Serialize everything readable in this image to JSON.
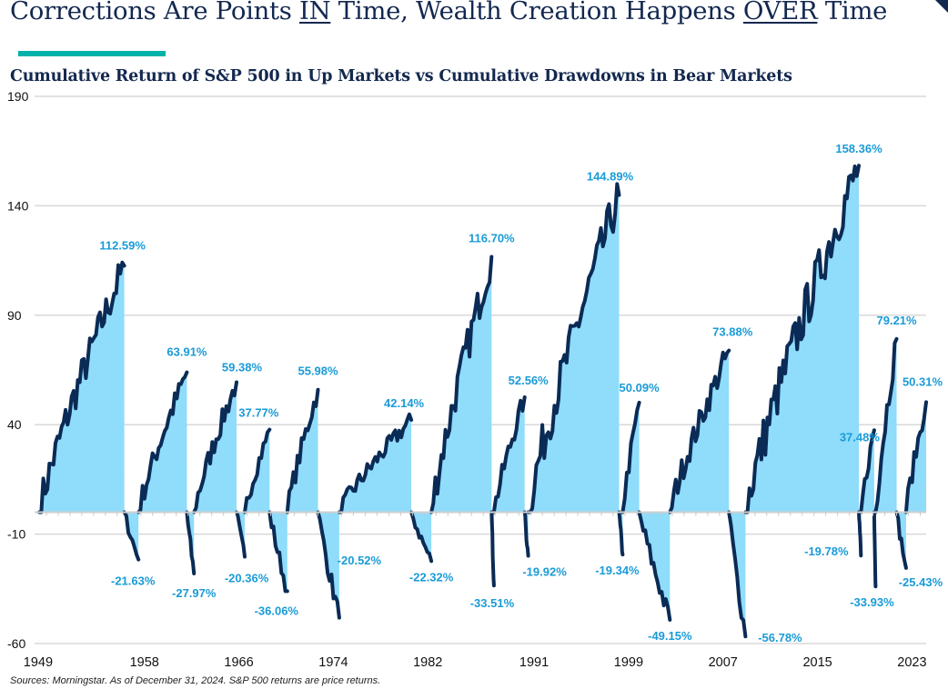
{
  "header": {
    "title_parts": [
      {
        "text": "Corrections Are Points ",
        "underline": false
      },
      {
        "text": "IN",
        "underline": true
      },
      {
        "text": " Time, Wealth Creation Happens ",
        "underline": false
      },
      {
        "text": "OVER",
        "underline": true
      },
      {
        "text": " Time",
        "underline": false
      }
    ],
    "accent_color": "#00b2a9",
    "title_color": "#13284f"
  },
  "footer": {
    "source_note": "Sources: Morningstar. As of December 31, 2024. S&P 500 returns are price returns."
  },
  "chart_data": {
    "type": "area",
    "title": "Cumulative Return of S&P 500 in Up Markets vs Cumulative Drawdowns in Bear Markets",
    "xlabel": "",
    "ylabel": "",
    "ylim": [
      -60,
      190
    ],
    "xlim": [
      1949,
      2024.5
    ],
    "yticks": [
      190,
      140,
      90,
      40,
      -10,
      -60
    ],
    "xticks": [
      "1949",
      "1958",
      "1966",
      "1974",
      "1982",
      "1991",
      "1999",
      "2007",
      "2015",
      "2023"
    ],
    "grid": true,
    "legend": "none",
    "colors": {
      "line": "#0a2b55",
      "fill": "#8fdcfb",
      "label": "#1a9bd7",
      "grid": "#d9d9d9"
    },
    "series": [
      {
        "name": "Up market",
        "start": 1949.4,
        "end": 1956.6,
        "value": 112.59,
        "label": "112.59%"
      },
      {
        "name": "Bear market",
        "start": 1956.6,
        "end": 1957.8,
        "value": -21.63,
        "label": "-21.63%"
      },
      {
        "name": "Up market",
        "start": 1957.8,
        "end": 1961.9,
        "value": 63.91,
        "label": "63.91%"
      },
      {
        "name": "Bear market",
        "start": 1961.9,
        "end": 1962.5,
        "value": -27.97,
        "label": "-27.97%"
      },
      {
        "name": "Up market",
        "start": 1962.5,
        "end": 1966.1,
        "value": 59.38,
        "label": "59.38%"
      },
      {
        "name": "Bear market",
        "start": 1966.1,
        "end": 1966.8,
        "value": -20.36,
        "label": "-20.36%"
      },
      {
        "name": "Up market",
        "start": 1966.8,
        "end": 1968.9,
        "value": 37.77,
        "label": "37.77%"
      },
      {
        "name": "Bear market",
        "start": 1968.9,
        "end": 1970.4,
        "value": -36.06,
        "label": "-36.06%"
      },
      {
        "name": "Up market",
        "start": 1970.4,
        "end": 1973.0,
        "value": 55.98,
        "label": "55.98%"
      },
      {
        "name": "Bear market",
        "start": 1973.0,
        "end": 1974.8,
        "value": -48.2,
        "label": ""
      },
      {
        "name": "Up market",
        "start": 1974.8,
        "end": 1980.9,
        "value": 42.14,
        "label": "42.14%"
      },
      {
        "name": "Bear market",
        "start": 1974.8,
        "end": 1974.8,
        "value": -20.52,
        "label": "-20.52%"
      },
      {
        "name": "Bear market",
        "start": 1980.9,
        "end": 1982.6,
        "value": -22.32,
        "label": "-22.32%"
      },
      {
        "name": "Up market",
        "start": 1982.6,
        "end": 1987.7,
        "value": 116.7,
        "label": "116.70%"
      },
      {
        "name": "Bear market",
        "start": 1987.7,
        "end": 1987.9,
        "value": -33.51,
        "label": "-33.51%"
      },
      {
        "name": "Up market",
        "start": 1987.9,
        "end": 1990.5,
        "value": 52.56,
        "label": "52.56%"
      },
      {
        "name": "Bear market",
        "start": 1990.5,
        "end": 1990.8,
        "value": -19.92,
        "label": "-19.92%"
      },
      {
        "name": "Up market",
        "start": 1990.8,
        "end": 1998.5,
        "value": 144.89,
        "label": "144.89%"
      },
      {
        "name": "Bear market",
        "start": 1998.5,
        "end": 1998.8,
        "value": -19.34,
        "label": "-19.34%"
      },
      {
        "name": "Up market",
        "start": 1998.8,
        "end": 2000.2,
        "value": 50.09,
        "label": "50.09%"
      },
      {
        "name": "Bear market",
        "start": 2000.2,
        "end": 2002.8,
        "value": -49.15,
        "label": "-49.15%"
      },
      {
        "name": "Up market",
        "start": 2002.8,
        "end": 2007.8,
        "value": 73.88,
        "label": "73.88%"
      },
      {
        "name": "Bear market",
        "start": 2007.8,
        "end": 2009.2,
        "value": -56.78,
        "label": "-56.78%"
      },
      {
        "name": "Up market",
        "start": 2009.2,
        "end": 2018.8,
        "value": 158.36,
        "label": "158.36%"
      },
      {
        "name": "Bear market",
        "start": 2018.8,
        "end": 2018.98,
        "value": -19.78,
        "label": "-19.78%"
      },
      {
        "name": "Up market",
        "start": 2018.98,
        "end": 2020.1,
        "value": 37.48,
        "label": "37.48%"
      },
      {
        "name": "Bear market",
        "start": 2020.1,
        "end": 2020.22,
        "value": -33.93,
        "label": "-33.93%"
      },
      {
        "name": "Up market",
        "start": 2020.22,
        "end": 2022.0,
        "value": 79.21,
        "label": "79.21%"
      },
      {
        "name": "Bear market",
        "start": 2022.0,
        "end": 2022.8,
        "value": -25.43,
        "label": "-25.43%"
      },
      {
        "name": "Up market",
        "start": 2022.8,
        "end": 2024.5,
        "value": 50.31,
        "label": "50.31%"
      }
    ]
  }
}
